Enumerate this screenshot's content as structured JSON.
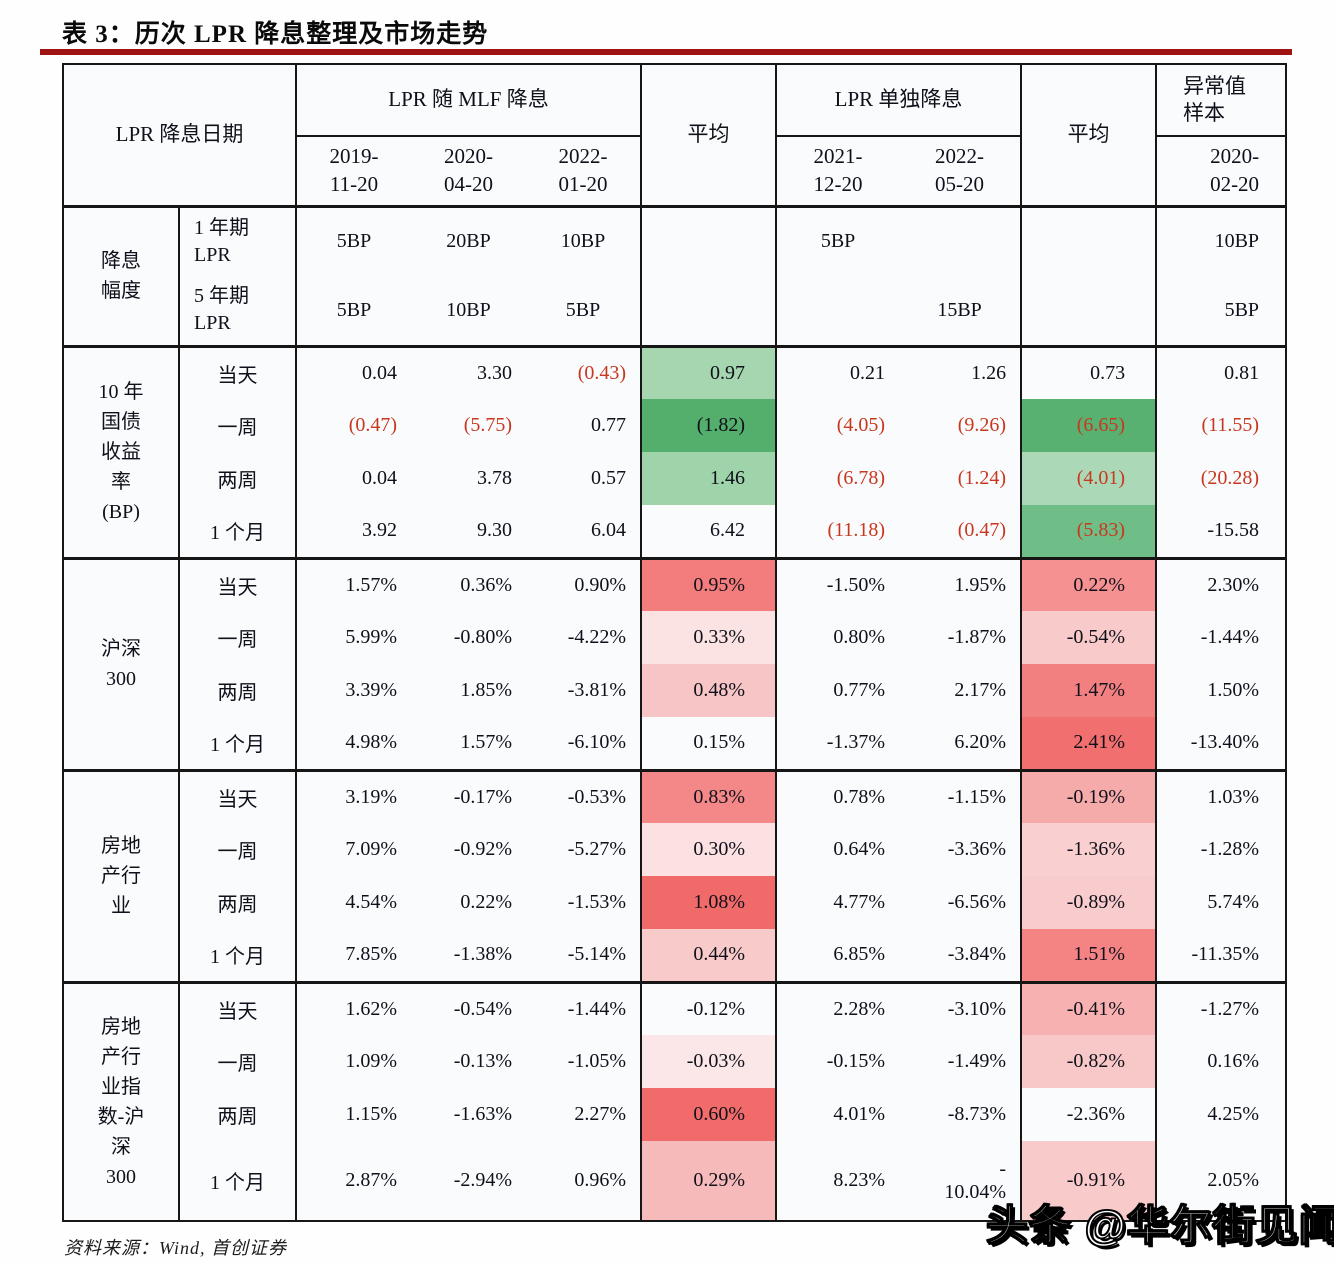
{
  "title": "表 3：历次 LPR 降息整理及市场走势",
  "source_note": "资料来源：Wind, 首创证券",
  "watermark": "头条 @华尔街见闻",
  "header": {
    "date_label": "LPR 降息日期",
    "mlf_group_label": "LPR 随 MLF 降息",
    "mlf_dates": [
      "2019-\n11-20",
      "2020-\n04-20",
      "2022-\n01-20"
    ],
    "avg1_label": "平均",
    "solo_group_label": "LPR 单独降息",
    "solo_dates": [
      "2021-\n12-20",
      "2022-\n05-20"
    ],
    "avg2_label": "平均",
    "outlier_label": "异常值\n样本",
    "outlier_date": "2020-\n02-20"
  },
  "magnitude": {
    "label": "降息\n幅度",
    "rows": [
      {
        "period": "1 年期\nLPR",
        "mlf": [
          "5BP",
          "20BP",
          "10BP"
        ],
        "solo": [
          "5BP",
          ""
        ],
        "outlier": "10BP"
      },
      {
        "period": "5 年期\nLPR",
        "mlf": [
          "5BP",
          "10BP",
          "5BP"
        ],
        "solo": [
          "",
          "15BP"
        ],
        "outlier": "5BP"
      }
    ]
  },
  "sections": [
    {
      "label": "10 年\n国债\n收益\n率\n(BP)",
      "rows": [
        {
          "period": "当天",
          "mlf": [
            "0.04",
            "3.30",
            "(0.43)"
          ],
          "avg1": {
            "t": "0.97",
            "bg": "#a6d6b0",
            "red": false
          },
          "solo": [
            "0.21",
            "1.26"
          ],
          "avg2": {
            "t": "0.73",
            "bg": "",
            "red": false
          },
          "outlier": "0.81"
        },
        {
          "period": "一周",
          "mlf": [
            "(0.47)",
            "(5.75)",
            "0.77"
          ],
          "avg1": {
            "t": "(1.82)",
            "bg": "#54af6c",
            "red": false
          },
          "solo": [
            "(4.05)",
            "(9.26)"
          ],
          "avg2": {
            "t": "(6.65)",
            "bg": "#58b170",
            "red": true
          },
          "outlier": "(11.55)"
        },
        {
          "period": "两周",
          "mlf": [
            "0.04",
            "3.78",
            "0.57"
          ],
          "avg1": {
            "t": "1.46",
            "bg": "#9fd3aa",
            "red": false
          },
          "solo": [
            "(6.78)",
            "(1.24)"
          ],
          "avg2": {
            "t": "(4.01)",
            "bg": "#abd9b8",
            "red": true
          },
          "outlier": "(20.28)"
        },
        {
          "period": "1 个月",
          "mlf": [
            "3.92",
            "9.30",
            "6.04"
          ],
          "avg1": {
            "t": "6.42",
            "bg": "",
            "red": false
          },
          "solo": [
            "(11.18)",
            "(0.47)"
          ],
          "avg2": {
            "t": "(5.83)",
            "bg": "#6fbe87",
            "red": true
          },
          "outlier": "-15.58"
        }
      ]
    },
    {
      "label": "沪深\n300",
      "rows": [
        {
          "period": "当天",
          "mlf": [
            "1.57%",
            "0.36%",
            "0.90%"
          ],
          "avg1": {
            "t": "0.95%",
            "bg": "#f37c7c",
            "red": false
          },
          "solo": [
            "-1.50%",
            "1.95%"
          ],
          "avg2": {
            "t": "0.22%",
            "bg": "#f59191",
            "red": false
          },
          "outlier": "2.30%"
        },
        {
          "period": "一周",
          "mlf": [
            "5.99%",
            "-0.80%",
            "-4.22%"
          ],
          "avg1": {
            "t": "0.33%",
            "bg": "#fbe3e3",
            "red": false
          },
          "solo": [
            "0.80%",
            "-1.87%"
          ],
          "avg2": {
            "t": "-0.54%",
            "bg": "#f8caca",
            "red": false
          },
          "outlier": "-1.44%"
        },
        {
          "period": "两周",
          "mlf": [
            "3.39%",
            "1.85%",
            "-3.81%"
          ],
          "avg1": {
            "t": "0.48%",
            "bg": "#f7c5c5",
            "red": false
          },
          "solo": [
            "0.77%",
            "2.17%"
          ],
          "avg2": {
            "t": "1.47%",
            "bg": "#f38080",
            "red": false
          },
          "outlier": "1.50%"
        },
        {
          "period": "1 个月",
          "mlf": [
            "4.98%",
            "1.57%",
            "-6.10%"
          ],
          "avg1": {
            "t": "0.15%",
            "bg": "",
            "red": false
          },
          "solo": [
            "-1.37%",
            "6.20%"
          ],
          "avg2": {
            "t": "2.41%",
            "bg": "#f26f6f",
            "red": false
          },
          "outlier": "-13.40%"
        }
      ]
    },
    {
      "label": "房地\n产行\n业",
      "rows": [
        {
          "period": "当天",
          "mlf": [
            "3.19%",
            "-0.17%",
            "-0.53%"
          ],
          "avg1": {
            "t": "0.83%",
            "bg": "#f48787",
            "red": false
          },
          "solo": [
            "0.78%",
            "-1.15%"
          ],
          "avg2": {
            "t": "-0.19%",
            "bg": "#f6abab",
            "red": false
          },
          "outlier": "1.03%"
        },
        {
          "period": "一周",
          "mlf": [
            "7.09%",
            "-0.92%",
            "-5.27%"
          ],
          "avg1": {
            "t": "0.30%",
            "bg": "#fbe1e1",
            "red": false
          },
          "solo": [
            "0.64%",
            "-3.36%"
          ],
          "avg2": {
            "t": "-1.36%",
            "bg": "#f9cfcf",
            "red": false
          },
          "outlier": "-1.28%"
        },
        {
          "period": "两周",
          "mlf": [
            "4.54%",
            "0.22%",
            "-1.53%"
          ],
          "avg1": {
            "t": "1.08%",
            "bg": "#f16a6a",
            "red": false
          },
          "solo": [
            "4.77%",
            "-6.56%"
          ],
          "avg2": {
            "t": "-0.89%",
            "bg": "#f8cccc",
            "red": false
          },
          "outlier": "5.74%"
        },
        {
          "period": "1 个月",
          "mlf": [
            "7.85%",
            "-1.38%",
            "-5.14%"
          ],
          "avg1": {
            "t": "0.44%",
            "bg": "#f8caca",
            "red": false
          },
          "solo": [
            "6.85%",
            "-3.84%"
          ],
          "avg2": {
            "t": "1.51%",
            "bg": "#f48383",
            "red": false
          },
          "outlier": "-11.35%"
        }
      ]
    },
    {
      "label": "房地\n产行\n业指\n数-沪\n深\n300",
      "rows": [
        {
          "period": "当天",
          "mlf": [
            "1.62%",
            "-0.54%",
            "-1.44%"
          ],
          "avg1": {
            "t": "-0.12%",
            "bg": "",
            "red": false
          },
          "solo": [
            "2.28%",
            "-3.10%"
          ],
          "avg2": {
            "t": "-0.41%",
            "bg": "#f7b1b1",
            "red": false
          },
          "outlier": "-1.27%"
        },
        {
          "period": "一周",
          "mlf": [
            "1.09%",
            "-0.13%",
            "-1.05%"
          ],
          "avg1": {
            "t": "-0.03%",
            "bg": "#fbe7e7",
            "red": false
          },
          "solo": [
            "-0.15%",
            "-1.49%"
          ],
          "avg2": {
            "t": "-0.82%",
            "bg": "#f8c8c8",
            "red": false
          },
          "outlier": "0.16%"
        },
        {
          "period": "两周",
          "mlf": [
            "1.15%",
            "-1.63%",
            "2.27%"
          ],
          "avg1": {
            "t": "0.60%",
            "bg": "#f16b6b",
            "red": false
          },
          "solo": [
            "4.01%",
            "-8.73%"
          ],
          "avg2": {
            "t": "-2.36%",
            "bg": "",
            "red": false
          },
          "outlier": "4.25%"
        },
        {
          "period": "1 个月",
          "mlf": [
            "2.87%",
            "-2.94%",
            "0.96%"
          ],
          "avg1": {
            "t": "0.29%",
            "bg": "#f7baba",
            "red": false
          },
          "solo": [
            "8.23%",
            "-\n10.04%"
          ],
          "avg2": {
            "t": "-0.91%",
            "bg": "#f9caca",
            "red": false
          },
          "outlier": "2.05%"
        }
      ]
    }
  ]
}
